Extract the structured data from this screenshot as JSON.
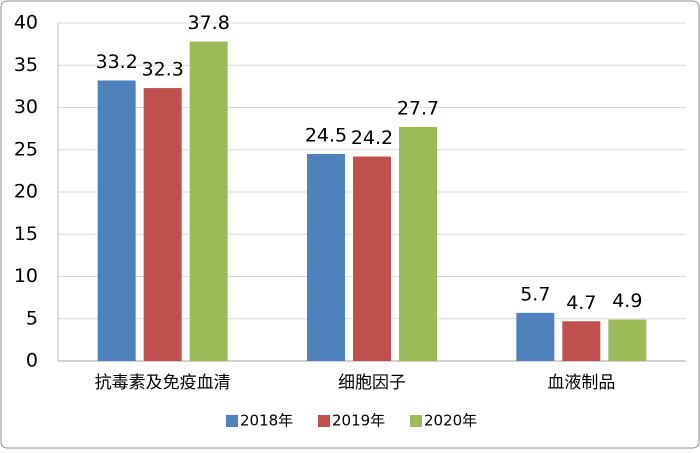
{
  "chart_data": {
    "type": "bar",
    "categories": [
      "抗毒素及免疫血清",
      "细胞因子",
      "血液制品"
    ],
    "series": [
      {
        "name": "2018年",
        "color": "#4f81bd",
        "values": [
          33.2,
          24.5,
          5.7
        ]
      },
      {
        "name": "2019年",
        "color": "#c0504d",
        "values": [
          32.3,
          24.2,
          4.7
        ]
      },
      {
        "name": "2020年",
        "color": "#9bbb59",
        "values": [
          37.8,
          27.7,
          4.9
        ]
      }
    ],
    "ylim": [
      0,
      40
    ],
    "yticks": [
      0,
      5,
      10,
      15,
      20,
      25,
      30,
      35,
      40
    ],
    "grid": true,
    "legend": "bottom"
  }
}
